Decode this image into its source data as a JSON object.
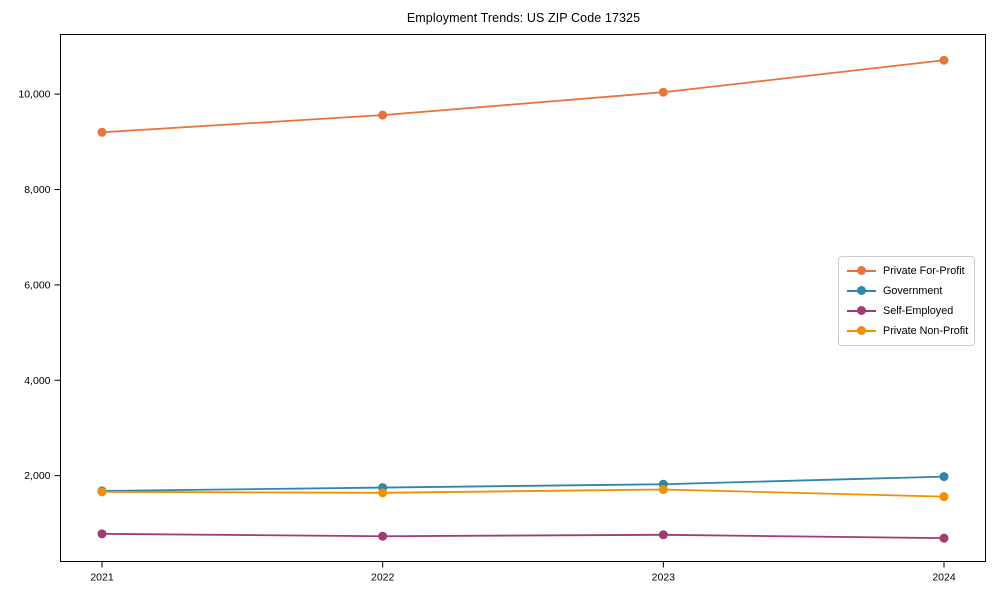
{
  "figure": {
    "title": "Employment Trends: US ZIP Code 17325"
  },
  "chart_data": {
    "type": "line",
    "title": "Employment Trends: US ZIP Code 17325",
    "xlabel": "",
    "ylabel": "",
    "grid": false,
    "legend_position": "center-right",
    "x": [
      2021,
      2022,
      2023,
      2024
    ],
    "x_tick_labels": [
      "2021",
      "2022",
      "2023",
      "2024"
    ],
    "y_ticks": [
      2000,
      4000,
      6000,
      8000,
      10000
    ],
    "y_tick_labels": [
      "2,000",
      "4,000",
      "6,000",
      "8,000",
      "10,000"
    ],
    "ylim": [
      200,
      11250
    ],
    "series": [
      {
        "name": "Private For-Profit",
        "color": "#E8743B",
        "values": [
          9200,
          9560,
          10040,
          10710
        ]
      },
      {
        "name": "Government",
        "color": "#2E86AB",
        "values": [
          1680,
          1750,
          1820,
          1980
        ]
      },
      {
        "name": "Self-Employed",
        "color": "#A23B72",
        "values": [
          780,
          730,
          760,
          690
        ]
      },
      {
        "name": "Private Non-Profit",
        "color": "#F18F01",
        "values": [
          1660,
          1640,
          1710,
          1560
        ]
      }
    ]
  }
}
